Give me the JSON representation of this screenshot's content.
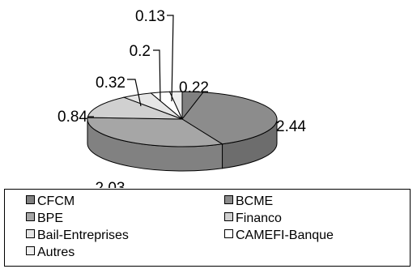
{
  "chart_data": {
    "type": "pie",
    "title": "",
    "categories": [
      "CFCM",
      "BCME",
      "BPE",
      "Financo",
      "Bail-Entreprises",
      "CAMEFI-Banque",
      "Autres"
    ],
    "values": [
      0.22,
      2.44,
      2.03,
      0.84,
      0.32,
      0.2,
      0.13
    ],
    "data_labels": [
      "0.22",
      "2.44",
      "2.03",
      "0.84",
      "0.32",
      "0.2",
      "0.13"
    ],
    "colors": [
      "#808080",
      "#8c8c8c",
      "#a6a6a6",
      "#d0d0d0",
      "#e6e6e6",
      "#ffffff",
      "#eeeeee"
    ],
    "style": "3d",
    "legend_position": "bottom"
  }
}
